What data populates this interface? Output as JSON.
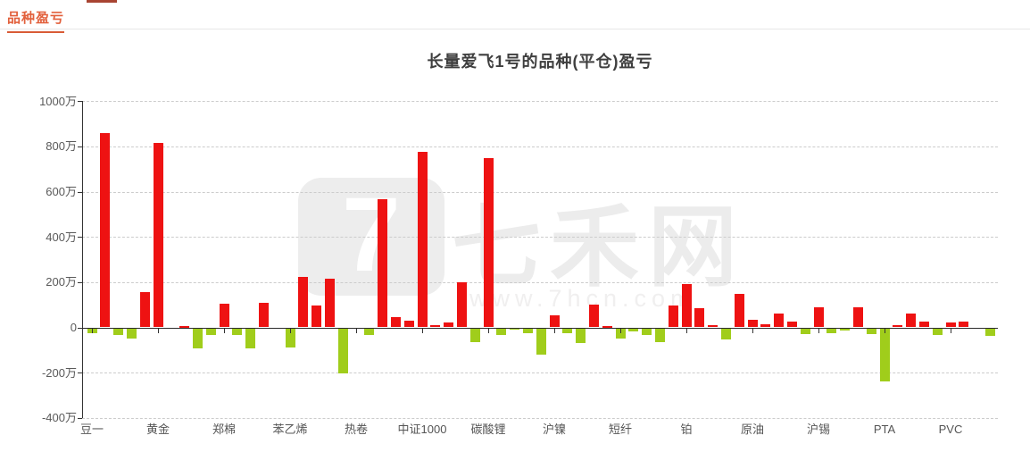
{
  "header": {
    "tab_label": "品种盈亏"
  },
  "watermark": {
    "logo_glyph": "7",
    "brand": "七禾网",
    "url": "www.7hcn.com"
  },
  "chart_data": {
    "type": "bar",
    "title": "长量爱飞1号的品种(平仓)盈亏",
    "value_unit": "万",
    "ylim": [
      -400,
      1000
    ],
    "y_ticks": [
      1000,
      800,
      600,
      400,
      200,
      0,
      -200,
      -400
    ],
    "y_tick_labels": [
      "1000万",
      "800万",
      "600万",
      "400万",
      "200万",
      "0",
      "-200万",
      "-400万"
    ],
    "grid": "horizontal dashed",
    "legend": "none",
    "colors": {
      "positive": "#ee1212",
      "negative": "#a0cd1b"
    },
    "x_label_interval": 5,
    "x_labels": [
      "豆一",
      "黄金",
      "郑棉",
      "苯乙烯",
      "热卷",
      "中证1000",
      "碳酸锂",
      "沪镍",
      "短纤",
      "铂",
      "原油",
      "沪锡",
      "PTA",
      "PVC"
    ],
    "values": [
      -20,
      860,
      -30,
      -45,
      155,
      815,
      0,
      5,
      -90,
      -30,
      105,
      -30,
      -90,
      110,
      0,
      -85,
      225,
      95,
      215,
      -200,
      0,
      -30,
      565,
      45,
      30,
      775,
      10,
      20,
      200,
      -60,
      750,
      -30,
      -5,
      -20,
      -115,
      55,
      -20,
      -65,
      100,
      5,
      -45,
      -15,
      -30,
      -60,
      95,
      190,
      85,
      10,
      -50,
      150,
      35,
      15,
      60,
      25,
      -25,
      90,
      -20,
      -10,
      90,
      -25,
      -235,
      10,
      60,
      25,
      -30,
      20,
      25,
      0,
      -35
    ]
  }
}
